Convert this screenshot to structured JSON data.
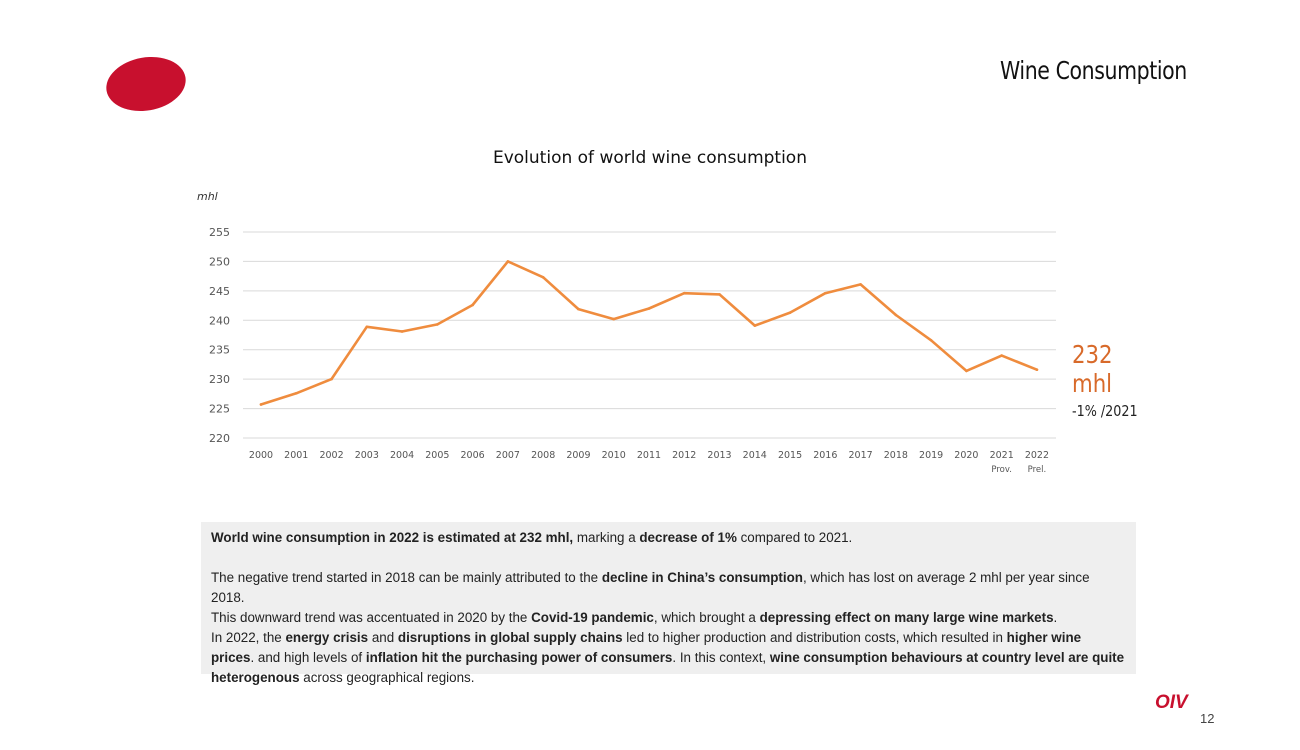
{
  "header": {
    "title": "Wine  Consumption"
  },
  "colors": {
    "logo": "#c8102e",
    "line": "#ef8c3e",
    "callout": "#d86a2a"
  },
  "chart_data": {
    "type": "line",
    "title": "Evolution of world wine consumption",
    "ylabel": "mhl",
    "xlabel": "",
    "ylim": [
      220,
      255
    ],
    "yticks": [
      255,
      250,
      245,
      240,
      235,
      230,
      225,
      220
    ],
    "grid": true,
    "categories": [
      "2000",
      "2001",
      "2002",
      "2003",
      "2004",
      "2005",
      "2006",
      "2007",
      "2008",
      "2009",
      "2010",
      "2011",
      "2012",
      "2013",
      "2014",
      "2015",
      "2016",
      "2017",
      "2018",
      "2019",
      "2020",
      "2021",
      "2022"
    ],
    "category_sublabels": [
      "",
      "",
      "",
      "",
      "",
      "",
      "",
      "",
      "",
      "",
      "",
      "",
      "",
      "",
      "",
      "",
      "",
      "",
      "",
      "",
      "",
      "Prov.",
      "Prel."
    ],
    "values": [
      225.7,
      227.6,
      230.0,
      238.9,
      238.1,
      239.3,
      242.6,
      250.0,
      247.3,
      241.9,
      240.2,
      242.0,
      244.6,
      244.4,
      239.1,
      241.3,
      244.6,
      246.1,
      240.9,
      236.6,
      231.4,
      234.0,
      231.6
    ]
  },
  "callout": {
    "value": "232",
    "unit": "mhl",
    "change": "-1% /2021"
  },
  "note": {
    "p1": [
      {
        "text": "World wine consumption in 2022 is estimated at 232 mhl,",
        "bold": true
      },
      {
        "text": " marking a ",
        "bold": false
      },
      {
        "text": "decrease of 1%",
        "bold": true
      },
      {
        "text": " compared to 2021.",
        "bold": false
      }
    ],
    "p2": [
      {
        "text": "The negative trend started in 2018 can be mainly attributed to the ",
        "bold": false
      },
      {
        "text": "decline in China’s consumption",
        "bold": true
      },
      {
        "text": ", which has lost on average 2 mhl per year since 2018.",
        "bold": false
      },
      {
        "text": "\n",
        "bold": false
      },
      {
        "text": "This downward trend was accentuated in 2020 by the ",
        "bold": false
      },
      {
        "text": "Covid-19 pandemic",
        "bold": true
      },
      {
        "text": ", which brought a ",
        "bold": false
      },
      {
        "text": "depressing effect on many large wine markets",
        "bold": true
      },
      {
        "text": ".",
        "bold": false
      },
      {
        "text": "\n",
        "bold": false
      },
      {
        "text": "In 2022, the ",
        "bold": false
      },
      {
        "text": "energy crisis",
        "bold": true
      },
      {
        "text": " and ",
        "bold": false
      },
      {
        "text": "disruptions in global supply chains",
        "bold": true
      },
      {
        "text": " led to higher production and distribution costs, which resulted in ",
        "bold": false
      },
      {
        "text": "higher wine prices",
        "bold": true
      },
      {
        "text": ". and high levels of ",
        "bold": false
      },
      {
        "text": "inflation hit the purchasing power of consumers",
        "bold": true
      },
      {
        "text": ". In this context, ",
        "bold": false
      },
      {
        "text": "wine consumption behaviours at country level are quite heterogenous",
        "bold": true
      },
      {
        "text": " across geographical regions.",
        "bold": false
      }
    ]
  },
  "footer": {
    "logo_text": "OIV",
    "page_number": "12"
  }
}
